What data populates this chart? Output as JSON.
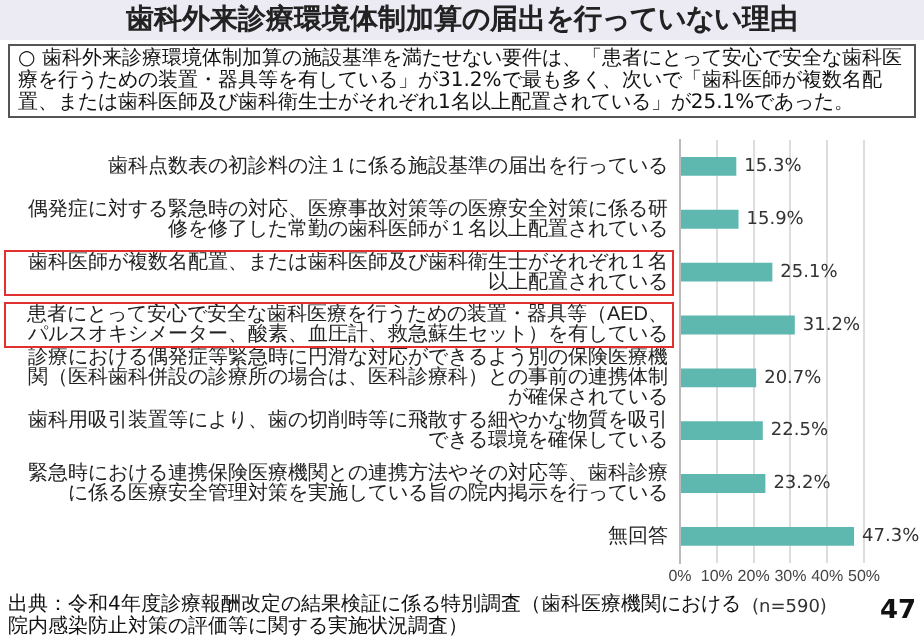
{
  "chart_data": {
    "type": "bar",
    "orientation": "horizontal",
    "title": "歯科外来診療環境体制加算の届出を行っていない理由",
    "categories": [
      "歯科点数表の初診料の注１に係る施設基準の届出を行っている",
      "偶発症に対する緊急時の対応、医療事故対策等の医療安全対策に係る研修を修了した常勤の歯科医師が１名以上配置されている",
      "歯科医師が複数名配置、または歯科医師及び歯科衛生士がそれぞれ１名以上配置されている",
      "患者にとって安心で安全な歯科医療を行うための装置・器具等（AED、パルスオキシメーター、酸素、血圧計、救急蘇生セット）を有している",
      "診療における偶発症等緊急時に円滑な対応ができるよう別の保険医療機関（医科歯科併設の診療所の場合は、医科診療科）との事前の連携体制が確保されている",
      "歯科用吸引装置等により、歯の切削時等に飛散する細やかな物質を吸引できる環境を確保している",
      "緊急時における連携保険医療機関との連携方法やその対応等、歯科診療に係る医療安全管理対策を実施している旨の院内掲示を行っている",
      "無回答"
    ],
    "values": [
      15.3,
      15.9,
      25.1,
      31.2,
      20.7,
      22.5,
      23.2,
      47.3
    ],
    "value_labels": [
      "15.3%",
      "15.9%",
      "25.1%",
      "31.2%",
      "20.7%",
      "22.5%",
      "23.2%",
      "47.3%"
    ],
    "color": "#5fb8b0",
    "xlim": [
      0,
      50
    ],
    "xticks": [
      {
        "value": 0,
        "label": "0%"
      },
      {
        "value": 10,
        "label": "10%"
      },
      {
        "value": 20,
        "label": "20%"
      },
      {
        "value": 30,
        "label": "30%"
      },
      {
        "value": 40,
        "label": "40%"
      },
      {
        "value": 50,
        "label": "50%"
      }
    ],
    "grid": "x",
    "legend": false,
    "annotations": [
      "○ 歯科外来診療環境体制加算の施設基準を満たせない要件は、「患者にとって安心で安全な歯科医療を行うための装置・器具等を有している」が31.2%で最も多く、次いで「歯科医師が複数名配置、または歯科医師及び歯科衛生士がそれぞれ1名以上配置されている」が25.1%であった。",
      "出典：令和4年度診療報酬改定の結果検証に係る特別調査（歯科医療機関における院内感染防止対策の評価等に関する実施状況調査）",
      "(n=590)",
      "47"
    ]
  }
}
